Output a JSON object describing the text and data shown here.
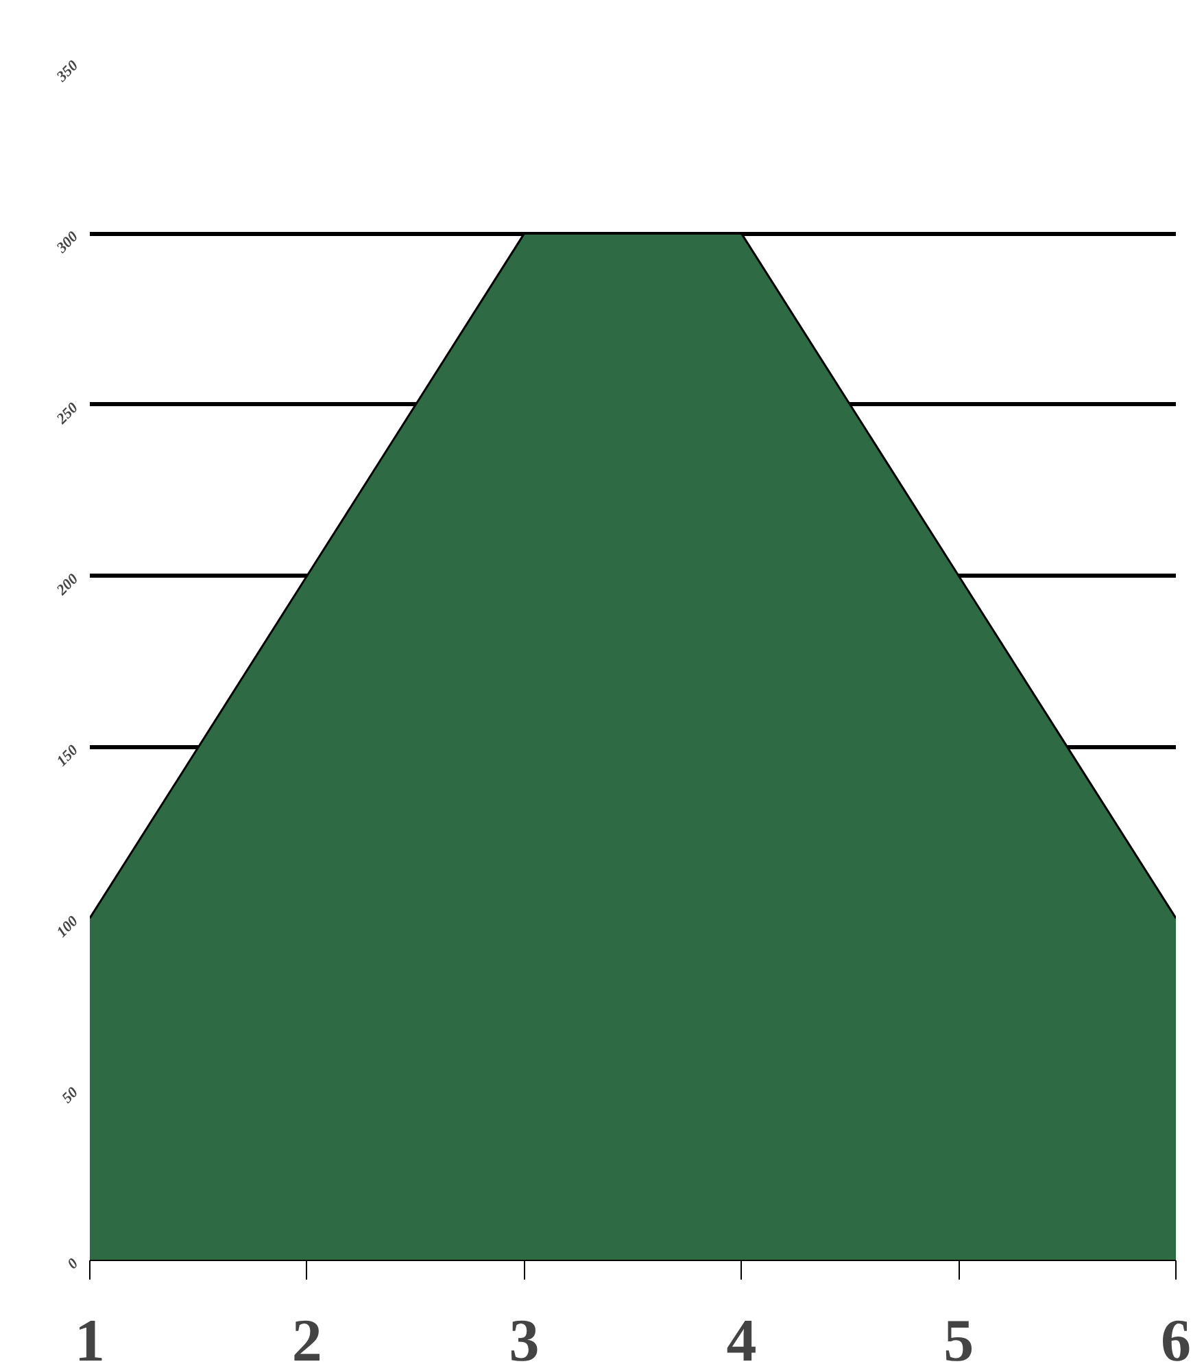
{
  "chart_data": {
    "type": "area",
    "categories": [
      "1",
      "2",
      "3",
      "4",
      "5",
      "6"
    ],
    "series": [
      {
        "color": "#2e6b45",
        "values": [
          100,
          200,
          300,
          300,
          200,
          100
        ]
      }
    ],
    "ylim": [
      0,
      350
    ],
    "yticks": [
      0,
      50,
      100,
      150,
      200,
      250,
      300,
      350
    ],
    "grid": "y"
  }
}
